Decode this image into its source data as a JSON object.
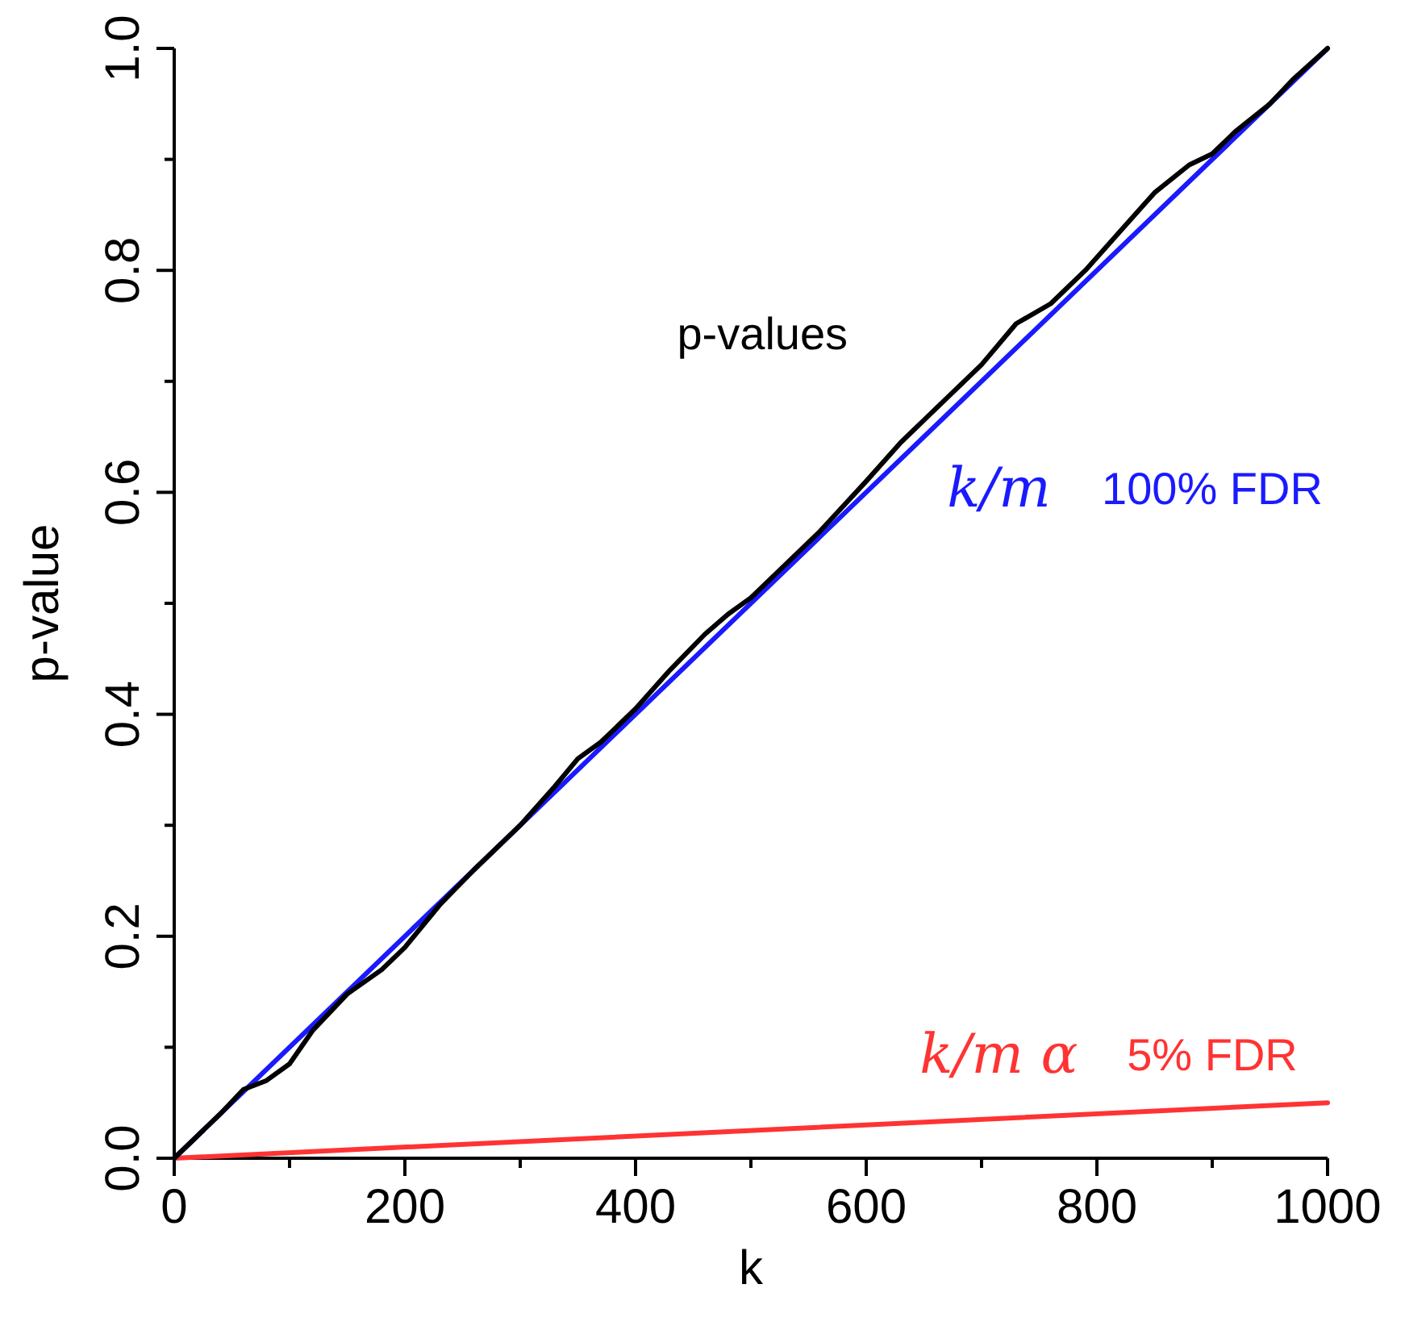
{
  "chart_data": {
    "type": "line",
    "xlabel": "k",
    "ylabel": "p-value",
    "xlim": [
      0,
      1000
    ],
    "ylim": [
      0,
      1
    ],
    "xticks": [
      0,
      {
        "value": 100,
        "label": null
      },
      200,
      {
        "value": 300,
        "label": null
      },
      400,
      {
        "value": 500,
        "label": null
      },
      600,
      {
        "value": 700,
        "label": null
      },
      800,
      {
        "value": 900,
        "label": null
      },
      1000
    ],
    "yticks": [
      {
        "value": 0,
        "label": "0.0"
      },
      {
        "value": 0.1,
        "label": null
      },
      0.2,
      {
        "value": 0.3,
        "label": null
      },
      0.4,
      {
        "value": 0.5,
        "label": null
      },
      0.6,
      {
        "value": 0.7,
        "label": null
      },
      0.8,
      {
        "value": 0.9,
        "label": null
      },
      {
        "value": 1,
        "label": "1.0"
      }
    ],
    "grid": false,
    "line_style": "solid",
    "series": [
      {
        "name": "p-values",
        "color": "#000000",
        "x": [
          0,
          20,
          40,
          60,
          80,
          100,
          120,
          150,
          180,
          200,
          230,
          260,
          300,
          330,
          350,
          370,
          400,
          430,
          460,
          480,
          500,
          530,
          560,
          600,
          630,
          660,
          700,
          730,
          760,
          790,
          820,
          850,
          880,
          900,
          920,
          950,
          970,
          1000
        ],
        "values": [
          0,
          0.02,
          0.04,
          0.062,
          0.07,
          0.085,
          0.115,
          0.148,
          0.17,
          0.19,
          0.228,
          0.26,
          0.3,
          0.335,
          0.36,
          0.375,
          0.405,
          0.44,
          0.472,
          0.49,
          0.505,
          0.535,
          0.565,
          0.61,
          0.645,
          0.675,
          0.715,
          0.752,
          0.77,
          0.8,
          0.835,
          0.87,
          0.895,
          0.905,
          0.925,
          0.95,
          0.972,
          1
        ]
      },
      {
        "name": "100% FDR",
        "color": "#1a1aff",
        "x": [
          0,
          1000
        ],
        "values": [
          0,
          1
        ]
      },
      {
        "name": "5% FDR",
        "color": "#ff3333",
        "x": [
          0,
          1000
        ],
        "values": [
          0,
          0.05
        ]
      }
    ],
    "annotations": [
      "k/m",
      "k/m α"
    ]
  }
}
